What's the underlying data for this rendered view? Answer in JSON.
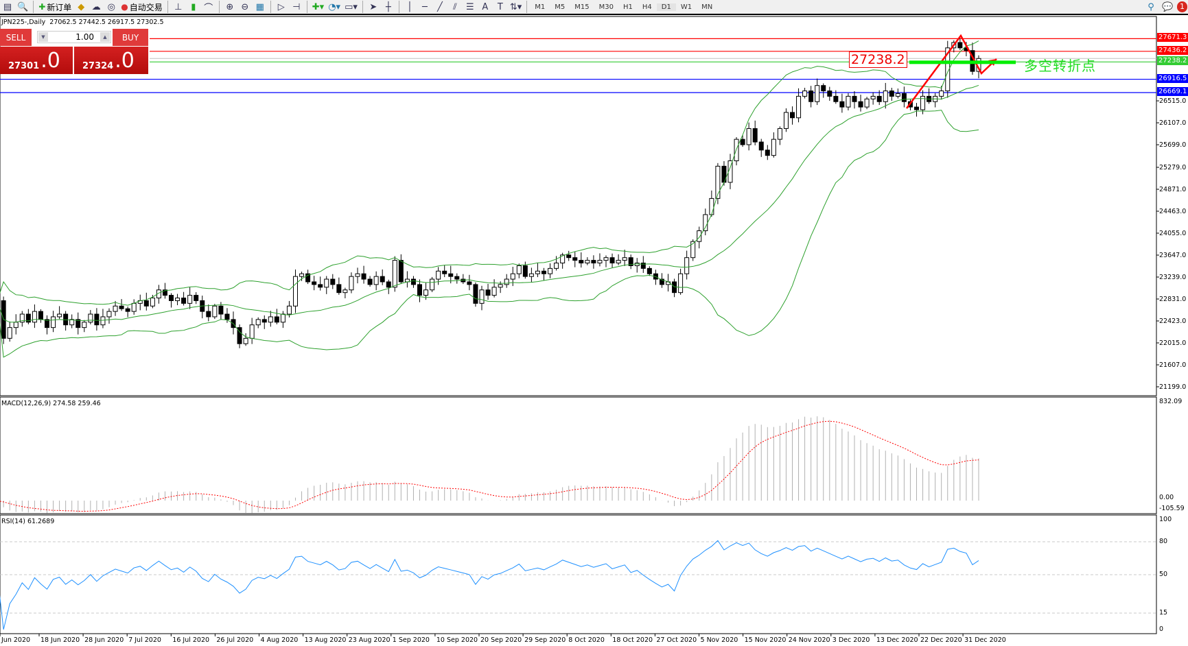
{
  "toolbar": {
    "new_order": "新订单",
    "auto_trading": "自动交易",
    "timeframes": [
      "M1",
      "M5",
      "M15",
      "M30",
      "H1",
      "H4",
      "D1",
      "W1",
      "MN"
    ],
    "notification_count": "1"
  },
  "chart": {
    "symbol_line": "JPN225-,Daily  27062.5 27442.5 26917.5 27302.5",
    "price_axis": [
      "26515.0",
      "26107.0",
      "25699.0",
      "25279.0",
      "24871.0",
      "24463.0",
      "24055.0",
      "23647.0",
      "23239.0",
      "22831.0",
      "22423.0",
      "22015.0",
      "21607.0",
      "21199.0"
    ],
    "hlines": [
      {
        "price": 27671.3,
        "label": "27671.3",
        "color": "#ff0000"
      },
      {
        "price": 27436.2,
        "label": "27436.2",
        "color": "#ff0000"
      },
      {
        "price": 27238.2,
        "label": "27238.2",
        "color": "#33cc33"
      },
      {
        "price": 26916.5,
        "label": "26916.5",
        "color": "#0000ff"
      },
      {
        "price": 26669.1,
        "label": "26669.1",
        "color": "#0000ff"
      }
    ],
    "bid_line": 27302.5,
    "annotation_price": "27238.2",
    "annotation_text": "多空转折点",
    "closes": [
      22800,
      22100,
      22300,
      22400,
      22550,
      22400,
      22600,
      22450,
      22300,
      22500,
      22550,
      22350,
      22450,
      22300,
      22400,
      22550,
      22350,
      22500,
      22600,
      22700,
      22650,
      22600,
      22750,
      22800,
      22700,
      22850,
      23000,
      22900,
      22800,
      22850,
      22750,
      22900,
      22800,
      22600,
      22500,
      22700,
      22550,
      22450,
      22300,
      22000,
      22100,
      22350,
      22450,
      22400,
      22500,
      22400,
      22550,
      22700,
      23250,
      23300,
      23150,
      23100,
      23050,
      23200,
      23100,
      22950,
      23000,
      23250,
      23300,
      23200,
      23100,
      23250,
      23150,
      23050,
      23550,
      23150,
      23200,
      23100,
      22900,
      23000,
      23200,
      23350,
      23300,
      23250,
      23200,
      23150,
      23100,
      22750,
      23000,
      22900,
      23050,
      23100,
      23200,
      23300,
      23450,
      23250,
      23300,
      23350,
      23300,
      23400,
      23500,
      23650,
      23600,
      23550,
      23500,
      23550,
      23500,
      23550,
      23600,
      23500,
      23550,
      23600,
      23450,
      23500,
      23400,
      23300,
      23200,
      23100,
      23150,
      22950,
      23300,
      23600,
      23900,
      24100,
      24400,
      24700,
      25300,
      25000,
      25400,
      25800,
      25700,
      26000,
      25750,
      25600,
      25500,
      25800,
      26000,
      26300,
      26200,
      26600,
      26700,
      26500,
      26800,
      26700,
      26600,
      26500,
      26400,
      26600,
      26500,
      26400,
      26550,
      26600,
      26500,
      26700,
      26600,
      26650,
      26500,
      26400,
      26350,
      26600,
      26500,
      26600,
      26700,
      27500,
      27600,
      27500,
      27450,
      27062.5,
      27302.5
    ],
    "dates": [
      "Jun 2020",
      "18 Jun 2020",
      "28 Jun 2020",
      "7 Jul 2020",
      "16 Jul 2020",
      "26 Jul 2020",
      "4 Aug 2020",
      "13 Aug 2020",
      "23 Aug 2020",
      "1 Sep 2020",
      "10 Sep 2020",
      "20 Sep 2020",
      "29 Sep 2020",
      "8 Oct 2020",
      "18 Oct 2020",
      "27 Oct 2020",
      "5 Nov 2020",
      "15 Nov 2020",
      "24 Nov 2020",
      "3 Dec 2020",
      "13 Dec 2020",
      "22 Dec 2020",
      "31 Dec 2020"
    ]
  },
  "trade_panel": {
    "sell_label": "SELL",
    "buy_label": "BUY",
    "lot": "1.00",
    "sell_price_main": "27301",
    "sell_price_big": ".0",
    "buy_price_main": "27324",
    "buy_price_big": ".0"
  },
  "macd": {
    "title": "MACD(12,26,9) 274.58 259.46",
    "axis_max": "832.09",
    "axis_zero": "0.00",
    "axis_min": "-105.59"
  },
  "rsi": {
    "title": "RSI(14) 61.2689",
    "levels": [
      "100",
      "80",
      "50",
      "15",
      "0"
    ]
  },
  "colors": {
    "bull": "#ffffff",
    "bear": "#000000",
    "bands": "#2ca02c",
    "macd_signal": "#ff0000",
    "rsi": "#1e90ff"
  }
}
